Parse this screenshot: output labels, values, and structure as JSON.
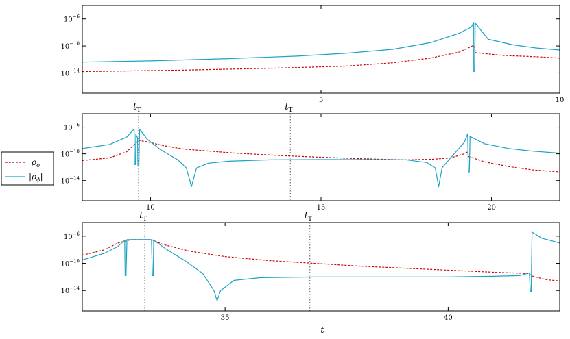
{
  "chart_data": [
    {
      "type": "line",
      "yscale": "log",
      "xlim": [
        0,
        10
      ],
      "ylim": [
        1e-17,
        0.0001
      ],
      "xticks": [
        5,
        10
      ],
      "yticks": [
        {
          "exp": -6,
          "label": "10"
        },
        {
          "exp": -10,
          "label": "10"
        },
        {
          "exp": -14,
          "label": "10"
        }
      ],
      "vlines": [],
      "series": [
        {
          "key": "rho_sigma",
          "points": [
            [
              0,
              -13.8
            ],
            [
              2,
              -13.6
            ],
            [
              4,
              -13.3
            ],
            [
              5.5,
              -13
            ],
            [
              6.5,
              -12.5
            ],
            [
              7.3,
              -11.8
            ],
            [
              7.9,
              -10.9
            ],
            [
              8.2,
              -9.9
            ],
            [
              8.24,
              -11.0
            ],
            [
              8.8,
              -11.4
            ],
            [
              9.5,
              -11.6
            ],
            [
              10,
              -11.8
            ]
          ]
        },
        {
          "key": "rho_phi",
          "points": [
            [
              0,
              -12.4
            ],
            [
              1.5,
              -12.2
            ],
            [
              3,
              -11.9
            ],
            [
              4.5,
              -11.5
            ],
            [
              5.5,
              -11.1
            ],
            [
              6.5,
              -10.5
            ],
            [
              7.3,
              -9.5
            ],
            [
              7.9,
              -8.1
            ],
            [
              8.15,
              -7.2
            ],
            [
              8.2,
              -6.5
            ],
            [
              8.2,
              -13.8
            ],
            [
              8.22,
              -13.8
            ],
            [
              8.23,
              -6.6
            ],
            [
              8.5,
              -9.0
            ],
            [
              9.0,
              -9.8
            ],
            [
              9.5,
              -10.3
            ],
            [
              10,
              -10.6
            ]
          ]
        }
      ]
    },
    {
      "type": "line",
      "yscale": "log",
      "xlim": [
        8,
        22
      ],
      "ylim": [
        1e-17,
        0.0001
      ],
      "xticks": [
        10,
        15,
        20
      ],
      "yticks": [
        {
          "exp": -6,
          "label": "10"
        },
        {
          "exp": -10,
          "label": "10"
        },
        {
          "exp": -14,
          "label": "10"
        }
      ],
      "vlines": [
        {
          "x": 9.65,
          "label": "t",
          "sub": "T"
        },
        {
          "x": 14.1,
          "label": "t",
          "sub": "T"
        }
      ],
      "series": [
        {
          "key": "rho_sigma",
          "points": [
            [
              8,
              -11.0
            ],
            [
              8.8,
              -10.6
            ],
            [
              9.3,
              -9.7
            ],
            [
              9.55,
              -8.5
            ],
            [
              9.65,
              -8.0
            ],
            [
              9.9,
              -8.2
            ],
            [
              10.4,
              -8.8
            ],
            [
              11,
              -9.3
            ],
            [
              12.5,
              -9.9
            ],
            [
              14,
              -10.3
            ],
            [
              16,
              -10.7
            ],
            [
              17.5,
              -10.9
            ],
            [
              18.3,
              -10.8
            ],
            [
              18.8,
              -10.6
            ],
            [
              19.2,
              -10.0
            ],
            [
              19.3,
              -9.7
            ],
            [
              19.33,
              -10.4
            ],
            [
              19.8,
              -11.2
            ],
            [
              20.5,
              -11.9
            ],
            [
              21.2,
              -12.4
            ],
            [
              22,
              -12.7
            ]
          ]
        },
        {
          "key": "rho_phi",
          "points": [
            [
              8,
              -9.2
            ],
            [
              8.8,
              -8.6
            ],
            [
              9.3,
              -7.5
            ],
            [
              9.52,
              -6.3
            ],
            [
              9.53,
              -11.6
            ],
            [
              9.56,
              -11.6
            ],
            [
              9.57,
              -7.1
            ],
            [
              9.62,
              -7.6
            ],
            [
              9.63,
              -11.8
            ],
            [
              9.66,
              -11.8
            ],
            [
              9.68,
              -6.3
            ],
            [
              9.9,
              -7.8
            ],
            [
              10.3,
              -9.4
            ],
            [
              10.8,
              -10.9
            ],
            [
              11.05,
              -12.1
            ],
            [
              11.2,
              -14.9
            ],
            [
              11.35,
              -12.1
            ],
            [
              11.7,
              -11.4
            ],
            [
              12.3,
              -11.1
            ],
            [
              13.5,
              -10.9
            ],
            [
              15,
              -10.85
            ],
            [
              16.5,
              -10.85
            ],
            [
              17.5,
              -10.9
            ],
            [
              18.1,
              -11.3
            ],
            [
              18.35,
              -12.1
            ],
            [
              18.45,
              -14.9
            ],
            [
              18.55,
              -12.1
            ],
            [
              18.8,
              -10.6
            ],
            [
              19.2,
              -8.3
            ],
            [
              19.3,
              -7.0
            ],
            [
              19.32,
              -12.7
            ],
            [
              19.35,
              -12.7
            ],
            [
              19.37,
              -7.4
            ],
            [
              19.8,
              -8.5
            ],
            [
              20.5,
              -9.2
            ],
            [
              21.2,
              -9.6
            ],
            [
              22,
              -9.9
            ]
          ]
        }
      ]
    },
    {
      "type": "line",
      "yscale": "log",
      "xlim": [
        31.8,
        42.5
      ],
      "ylim": [
        1e-17,
        0.0001
      ],
      "xticks": [
        35,
        40
      ],
      "yticks": [
        {
          "exp": -6,
          "label": "10"
        },
        {
          "exp": -10,
          "label": "10"
        },
        {
          "exp": -14,
          "label": "10"
        }
      ],
      "xlabel": "t",
      "vlines": [
        {
          "x": 33.2,
          "label": "t",
          "sub": "T"
        },
        {
          "x": 36.9,
          "label": "t",
          "sub": "T"
        }
      ],
      "series": [
        {
          "key": "rho_sigma",
          "points": [
            [
              31.8,
              -8.8
            ],
            [
              32.3,
              -8.0
            ],
            [
              32.6,
              -7.0
            ],
            [
              32.9,
              -6.5
            ],
            [
              33.35,
              -6.5
            ],
            [
              33.6,
              -7.2
            ],
            [
              34.2,
              -8.2
            ],
            [
              35,
              -9.0
            ],
            [
              36,
              -9.6
            ],
            [
              37,
              -10.0
            ],
            [
              38,
              -10.4
            ],
            [
              39,
              -10.7
            ],
            [
              40,
              -11.0
            ],
            [
              41,
              -11.3
            ],
            [
              41.8,
              -11.5
            ],
            [
              41.9,
              -11.9
            ],
            [
              42.2,
              -12.4
            ],
            [
              42.5,
              -12.6
            ]
          ]
        },
        {
          "key": "rho_phi",
          "points": [
            [
              31.8,
              -9.5
            ],
            [
              32.3,
              -8.5
            ],
            [
              32.6,
              -7.5
            ],
            [
              32.75,
              -6.6
            ],
            [
              32.76,
              -11.8
            ],
            [
              32.78,
              -11.8
            ],
            [
              32.8,
              -6.5
            ],
            [
              33.3,
              -6.5
            ],
            [
              33.35,
              -6.5
            ],
            [
              33.37,
              -11.8
            ],
            [
              33.39,
              -11.8
            ],
            [
              33.4,
              -6.6
            ],
            [
              33.7,
              -8.0
            ],
            [
              34.1,
              -9.6
            ],
            [
              34.5,
              -11.5
            ],
            [
              34.75,
              -14.0
            ],
            [
              34.82,
              -15.5
            ],
            [
              34.9,
              -14.0
            ],
            [
              35.2,
              -12.5
            ],
            [
              35.8,
              -12.1
            ],
            [
              37,
              -12.0
            ],
            [
              38.5,
              -12.0
            ],
            [
              40,
              -12.0
            ],
            [
              41,
              -11.9
            ],
            [
              41.6,
              -11.8
            ],
            [
              41.82,
              -11.4
            ],
            [
              41.84,
              -14.2
            ],
            [
              41.86,
              -14.2
            ],
            [
              41.88,
              -5.4
            ],
            [
              42.1,
              -6.3
            ],
            [
              42.5,
              -7.0
            ]
          ]
        }
      ]
    }
  ],
  "legend": {
    "items": [
      {
        "key": "rho_sigma",
        "label": "ρ",
        "sub": "σ",
        "bars": false,
        "color": "#cc0000",
        "dash": "3 2"
      },
      {
        "key": "rho_phi",
        "label": "ρ",
        "sub": "ϕ",
        "bars": true,
        "color": "#1aa3c4",
        "dash": ""
      }
    ]
  },
  "colors": {
    "rho_sigma": "#cc0000",
    "rho_phi": "#1aa3c4"
  }
}
